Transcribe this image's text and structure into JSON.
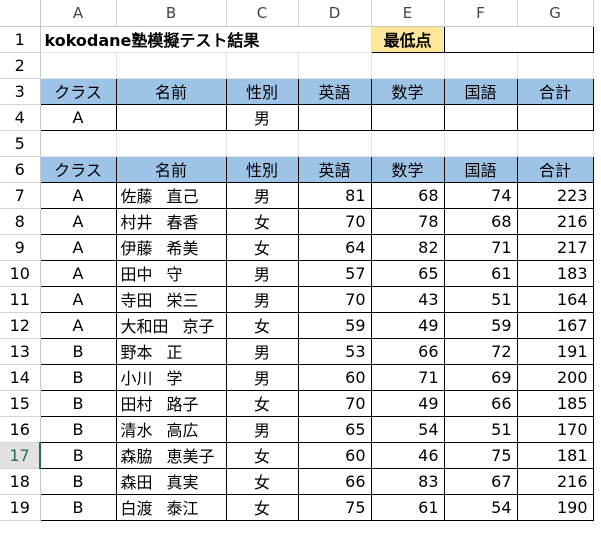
{
  "columns": [
    "A",
    "B",
    "C",
    "D",
    "E",
    "F",
    "G"
  ],
  "row_numbers": [
    "1",
    "2",
    "3",
    "4",
    "5",
    "6",
    "7",
    "8",
    "9",
    "10",
    "11",
    "12",
    "13",
    "14",
    "15",
    "16",
    "17",
    "18",
    "19"
  ],
  "selected_row": "17",
  "title": "kokodane塾模擬テスト結果",
  "min_label": "最低点",
  "min_value": "",
  "headers": [
    "クラス",
    "名前",
    "性別",
    "英語",
    "数学",
    "国語",
    "合計"
  ],
  "criteria": {
    "class": "A",
    "name": "",
    "gender": "男",
    "english": "",
    "math": "",
    "japanese": "",
    "total": ""
  },
  "records": [
    {
      "class": "A",
      "last": "佐藤",
      "first": "直己",
      "gender": "男",
      "english": "81",
      "math": "68",
      "japanese": "74",
      "total": "223"
    },
    {
      "class": "A",
      "last": "村井",
      "first": "春香",
      "gender": "女",
      "english": "70",
      "math": "78",
      "japanese": "68",
      "total": "216"
    },
    {
      "class": "A",
      "last": "伊藤",
      "first": "希美",
      "gender": "女",
      "english": "64",
      "math": "82",
      "japanese": "71",
      "total": "217"
    },
    {
      "class": "A",
      "last": "田中",
      "first": "守",
      "gender": "男",
      "english": "57",
      "math": "65",
      "japanese": "61",
      "total": "183"
    },
    {
      "class": "A",
      "last": "寺田",
      "first": "栄三",
      "gender": "男",
      "english": "70",
      "math": "43",
      "japanese": "51",
      "total": "164"
    },
    {
      "class": "A",
      "last": "大和田",
      "first": "京子",
      "gender": "女",
      "english": "59",
      "math": "49",
      "japanese": "59",
      "total": "167"
    },
    {
      "class": "B",
      "last": "野本",
      "first": "正",
      "gender": "男",
      "english": "53",
      "math": "66",
      "japanese": "72",
      "total": "191"
    },
    {
      "class": "B",
      "last": "小川",
      "first": "学",
      "gender": "男",
      "english": "60",
      "math": "71",
      "japanese": "69",
      "total": "200"
    },
    {
      "class": "B",
      "last": "田村",
      "first": "路子",
      "gender": "女",
      "english": "70",
      "math": "49",
      "japanese": "66",
      "total": "185"
    },
    {
      "class": "B",
      "last": "清水",
      "first": "高広",
      "gender": "男",
      "english": "65",
      "math": "54",
      "japanese": "51",
      "total": "170"
    },
    {
      "class": "B",
      "last": "森脇",
      "first": "恵美子",
      "gender": "女",
      "english": "60",
      "math": "46",
      "japanese": "75",
      "total": "181"
    },
    {
      "class": "B",
      "last": "森田",
      "first": "真実",
      "gender": "女",
      "english": "66",
      "math": "83",
      "japanese": "67",
      "total": "216"
    },
    {
      "class": "B",
      "last": "白渡",
      "first": "泰江",
      "gender": "女",
      "english": "75",
      "math": "61",
      "japanese": "54",
      "total": "190"
    }
  ]
}
